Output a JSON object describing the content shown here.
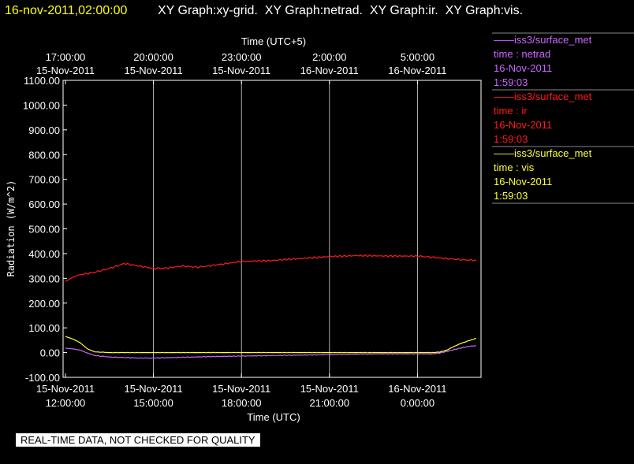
{
  "header": {
    "timestamp": "16-nov-2011,02:00:00",
    "graphs": "XY Graph:xy-grid.  XY Graph:netrad.  XY Graph:ir.  XY Graph:vis."
  },
  "colors": {
    "background": "#000000",
    "timestamp": "#ffff00",
    "netrad": "#cc66ff",
    "ir": "#ff1a1a",
    "vis": "#ffff33",
    "grid": "#ffffff"
  },
  "legend": [
    {
      "series": "netrad",
      "lines": [
        "——iss3/surface_met",
        "time : netrad",
        "16-Nov-2011",
        "1:59:03"
      ]
    },
    {
      "series": "ir",
      "lines": [
        "——iss3/surface_met",
        "time : ir",
        "16-Nov-2011",
        "1:59:03"
      ]
    },
    {
      "series": "vis",
      "lines": [
        "——iss3/surface_met",
        "time : vis",
        "16-Nov-2011",
        "1:59:03"
      ]
    }
  ],
  "banner": "REAL-TIME DATA, NOT CHECKED FOR QUALITY",
  "chart_data": {
    "type": "line",
    "title": "",
    "xlabel": "Time (UTC)",
    "x2label": "Time (UTC+5)",
    "ylabel": "Radiation (W/m^2)",
    "ylim": [
      -100,
      1100
    ],
    "yticks": [
      -100,
      0,
      100,
      200,
      300,
      400,
      500,
      600,
      700,
      800,
      900,
      1000,
      1100
    ],
    "ytick_labels": [
      "-100.00",
      "0.00",
      "100.00",
      "200.00",
      "300.00",
      "400.00",
      "500.00",
      "600.00",
      "700.00",
      "800.00",
      "900.00",
      "1000.00",
      "1100.00"
    ],
    "xlim": [
      "2011-11-15 12:00",
      "2011-11-16 02:00"
    ],
    "grid": "vertical lines at x ticks",
    "x_ticks": [
      {
        "time": "2011-11-15 12:00",
        "date": "15-Nov-2011",
        "clock": "12:00:00"
      },
      {
        "time": "2011-11-15 15:00",
        "date": "15-Nov-2011",
        "clock": "15:00:00"
      },
      {
        "time": "2011-11-15 18:00",
        "date": "15-Nov-2011",
        "clock": "18:00:00"
      },
      {
        "time": "2011-11-15 21:00",
        "date": "15-Nov-2011",
        "clock": "21:00:00"
      },
      {
        "time": "2011-11-16 00:00",
        "date": "16-Nov-2011",
        "clock": "0:00:00"
      }
    ],
    "x2_ticks": [
      {
        "time": "2011-11-15 12:00",
        "date": "15-Nov-2011",
        "clock": "17:00:00"
      },
      {
        "time": "2011-11-15 15:00",
        "date": "15-Nov-2011",
        "clock": "20:00:00"
      },
      {
        "time": "2011-11-15 18:00",
        "date": "15-Nov-2011",
        "clock": "23:00:00"
      },
      {
        "time": "2011-11-15 21:00",
        "date": "16-Nov-2011",
        "clock": "2:00:00"
      },
      {
        "time": "2011-11-16 00:00",
        "date": "16-Nov-2011",
        "clock": "5:00:00"
      }
    ],
    "series": [
      {
        "name": "netrad",
        "x": [
          "2011-11-15 12:00",
          "2011-11-15 12:15",
          "2011-11-15 12:30",
          "2011-11-15 12:45",
          "2011-11-15 13:00",
          "2011-11-15 13:30",
          "2011-11-15 14:00",
          "2011-11-15 14:30",
          "2011-11-15 15:00",
          "2011-11-15 16:00",
          "2011-11-15 17:00",
          "2011-11-15 18:00",
          "2011-11-15 19:00",
          "2011-11-15 20:00",
          "2011-11-15 21:00",
          "2011-11-15 22:00",
          "2011-11-15 23:00",
          "2011-11-16 00:00",
          "2011-11-16 00:30",
          "2011-11-16 00:45",
          "2011-11-16 01:00",
          "2011-11-16 01:15",
          "2011-11-16 01:30",
          "2011-11-16 01:45",
          "2011-11-16 02:00"
        ],
        "y": [
          18,
          15,
          10,
          -2,
          -12,
          -18,
          -20,
          -22,
          -22,
          -19,
          -16,
          -14,
          -12,
          -10,
          -8,
          -6,
          -5,
          -5,
          -5,
          -2,
          5,
          12,
          19,
          25,
          28
        ]
      },
      {
        "name": "ir",
        "x": [
          "2011-11-15 12:00",
          "2011-11-15 12:15",
          "2011-11-15 12:30",
          "2011-11-15 13:00",
          "2011-11-15 13:30",
          "2011-11-15 14:00",
          "2011-11-15 14:30",
          "2011-11-15 15:00",
          "2011-11-15 15:30",
          "2011-11-15 16:00",
          "2011-11-15 16:30",
          "2011-11-15 17:00",
          "2011-11-15 17:30",
          "2011-11-15 18:00",
          "2011-11-15 19:00",
          "2011-11-15 20:00",
          "2011-11-15 21:00",
          "2011-11-15 22:00",
          "2011-11-15 23:00",
          "2011-11-16 00:00",
          "2011-11-16 00:30",
          "2011-11-16 01:00",
          "2011-11-16 01:30",
          "2011-11-16 02:00"
        ],
        "y": [
          287,
          305,
          315,
          325,
          340,
          360,
          350,
          340,
          342,
          350,
          345,
          352,
          360,
          368,
          372,
          380,
          388,
          392,
          390,
          390,
          385,
          380,
          375,
          373
        ]
      },
      {
        "name": "vis",
        "x": [
          "2011-11-15 12:00",
          "2011-11-15 12:15",
          "2011-11-15 12:30",
          "2011-11-15 12:45",
          "2011-11-15 13:00",
          "2011-11-15 13:30",
          "2011-11-15 14:00",
          "2011-11-15 15:00",
          "2011-11-15 16:00",
          "2011-11-15 17:00",
          "2011-11-15 18:00",
          "2011-11-15 19:00",
          "2011-11-15 20:00",
          "2011-11-15 21:00",
          "2011-11-15 22:00",
          "2011-11-15 23:00",
          "2011-11-16 00:00",
          "2011-11-16 00:30",
          "2011-11-16 00:45",
          "2011-11-16 01:00",
          "2011-11-16 01:15",
          "2011-11-16 01:30",
          "2011-11-16 01:45",
          "2011-11-16 02:00"
        ],
        "y": [
          65,
          55,
          40,
          15,
          3,
          0,
          0,
          0,
          0,
          0,
          0,
          0,
          0,
          0,
          0,
          0,
          0,
          0,
          2,
          10,
          25,
          38,
          48,
          58
        ]
      }
    ]
  }
}
